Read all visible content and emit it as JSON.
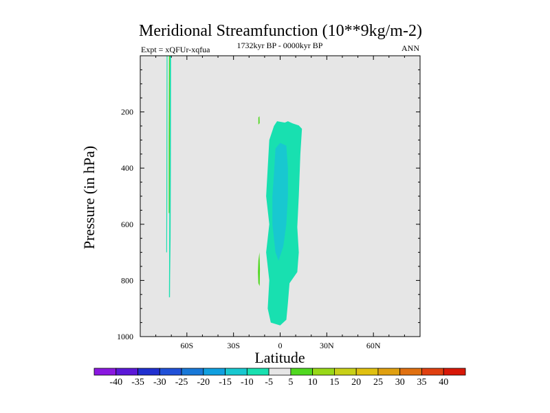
{
  "chart_data": {
    "type": "heatmap",
    "title": "Meridional Streamfunction (10**9kg/m-2)",
    "subtitle_left": "Expt = xQFUr-xqfua",
    "subtitle_center": "1732kyr BP - 0000kyr BP",
    "subtitle_right": "ANN",
    "xlabel": "Latitude",
    "ylabel": "Pressure (in hPa)",
    "xlim": [
      -90,
      90
    ],
    "ylim": [
      0,
      1000
    ],
    "y_inverted": true,
    "x_ticks": [
      {
        "value": -60,
        "label": "60S"
      },
      {
        "value": -30,
        "label": "30S"
      },
      {
        "value": 0,
        "label": "0"
      },
      {
        "value": 30,
        "label": "30N"
      },
      {
        "value": 60,
        "label": "60N"
      }
    ],
    "y_ticks": [
      {
        "value": 200,
        "label": "200"
      },
      {
        "value": 400,
        "label": "400"
      },
      {
        "value": 600,
        "label": "600"
      },
      {
        "value": 800,
        "label": "800"
      },
      {
        "value": 1000,
        "label": "1000"
      }
    ],
    "background_color": "#e6e6e6",
    "colorbar": {
      "levels": [
        "-40",
        "-35",
        "-30",
        "-25",
        "-20",
        "-15",
        "-10",
        "-5",
        "5",
        "10",
        "15",
        "20",
        "25",
        "30",
        "35",
        "40"
      ],
      "colors": [
        "#8a18e0",
        "#5b18d8",
        "#2030d0",
        "#2050d8",
        "#1878d8",
        "#10a0e0",
        "#18c8d0",
        "#18e0b0",
        "#e6e6e6",
        "#50d820",
        "#98d818",
        "#c8d018",
        "#e0c010",
        "#e0a010",
        "#e07010",
        "#e04010",
        "#d81808"
      ]
    },
    "regions": [
      {
        "name": "main-cell-outer",
        "level": "-10 to -5",
        "color": "#18e0b0",
        "polygon": [
          [
            -4,
            250
          ],
          [
            -2,
            233
          ],
          [
            3,
            238
          ],
          [
            5,
            233
          ],
          [
            8,
            241
          ],
          [
            12,
            248
          ],
          [
            14,
            260
          ],
          [
            13,
            350
          ],
          [
            12,
            500
          ],
          [
            11,
            610
          ],
          [
            12,
            700
          ],
          [
            11,
            770
          ],
          [
            6,
            810
          ],
          [
            5,
            880
          ],
          [
            4,
            940
          ],
          [
            0,
            960
          ],
          [
            -6,
            950
          ],
          [
            -8,
            900
          ],
          [
            -7,
            800
          ],
          [
            -9,
            700
          ],
          [
            -7,
            600
          ],
          [
            -9,
            500
          ],
          [
            -8,
            400
          ],
          [
            -7,
            300
          ]
        ]
      },
      {
        "name": "main-cell-core",
        "level": "-15 to -10",
        "color": "#18c8d0",
        "polygon": [
          [
            -3,
            330
          ],
          [
            0,
            310
          ],
          [
            4,
            320
          ],
          [
            5,
            400
          ],
          [
            5,
            500
          ],
          [
            4,
            600
          ],
          [
            2,
            680
          ],
          [
            -1,
            730
          ],
          [
            -3,
            700
          ],
          [
            -5,
            600
          ],
          [
            -5,
            500
          ],
          [
            -4,
            420
          ]
        ]
      },
      {
        "name": "sh-streak-thin",
        "level": "-10 to -5",
        "color": "#18e0b0",
        "polygon": [
          [
            -73,
            0
          ],
          [
            -72.5,
            0
          ],
          [
            -72.6,
            500
          ],
          [
            -72.8,
            700
          ],
          [
            -73.3,
            700
          ],
          [
            -73.2,
            500
          ]
        ]
      },
      {
        "name": "sh-streak-right",
        "level": "-10 to -5",
        "color": "#18e0b0",
        "polygon": [
          [
            -71,
            0
          ],
          [
            -70.2,
            0
          ],
          [
            -70.3,
            400
          ],
          [
            -70.5,
            650
          ],
          [
            -70.8,
            780
          ],
          [
            -70.9,
            860
          ],
          [
            -71.5,
            860
          ],
          [
            -71.4,
            700
          ],
          [
            -71.2,
            400
          ]
        ]
      },
      {
        "name": "sh-streak-positive",
        "level": "5 to 10",
        "color": "#50d820",
        "polygon": [
          [
            -71.5,
            0
          ],
          [
            -71,
            0
          ],
          [
            -71,
            300
          ],
          [
            -71.2,
            560
          ],
          [
            -71.7,
            560
          ],
          [
            -71.7,
            300
          ]
        ]
      },
      {
        "name": "nh-blob-small",
        "level": "5 to 10",
        "color": "#50d820",
        "polygon": [
          [
            -14,
            220
          ],
          [
            -13.3,
            215
          ],
          [
            -13.2,
            240
          ],
          [
            -14,
            245
          ]
        ]
      },
      {
        "name": "nh-blob-lower",
        "level": "5 to 10",
        "color": "#50d820",
        "polygon": [
          [
            -14,
            730
          ],
          [
            -13.3,
            700
          ],
          [
            -13,
            760
          ],
          [
            -13.2,
            820
          ],
          [
            -14,
            810
          ],
          [
            -14.3,
            770
          ]
        ]
      }
    ]
  }
}
